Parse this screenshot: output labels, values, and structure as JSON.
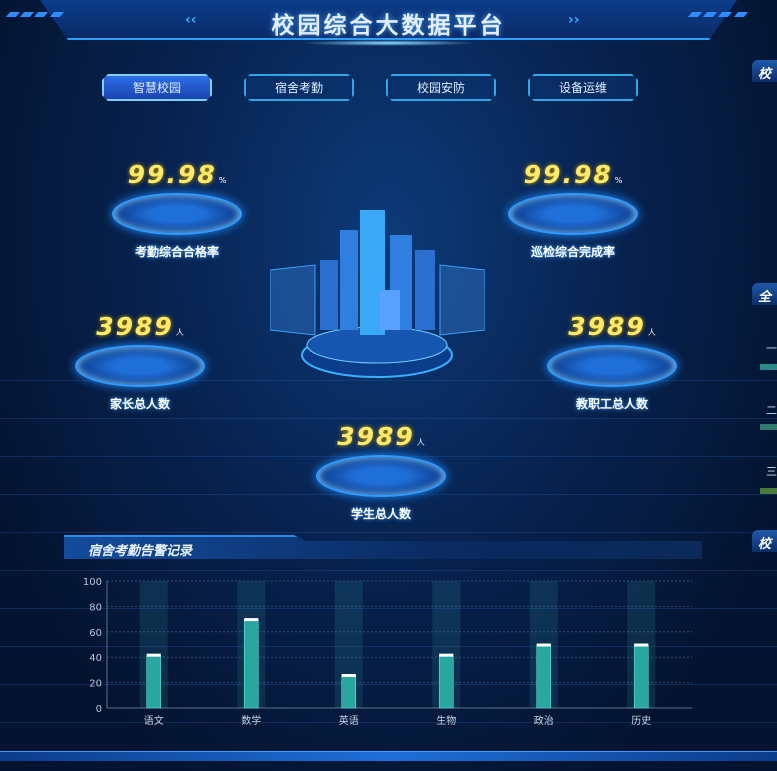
{
  "header": {
    "title": "校园综合大数据平台"
  },
  "tabs": [
    {
      "label": "智慧校园",
      "active": true
    },
    {
      "label": "宿舍考勤",
      "active": false
    },
    {
      "label": "校园安防",
      "active": false
    },
    {
      "label": "设备运维",
      "active": false
    }
  ],
  "stats": {
    "attendance": {
      "value": "99.98",
      "unit": "%",
      "label": "考勤综合合格率"
    },
    "inspection": {
      "value": "99.98",
      "unit": "%",
      "label": "巡检综合完成率"
    },
    "parents": {
      "value": "3989",
      "unit": "人",
      "label": "家长总人数"
    },
    "staff": {
      "value": "3989",
      "unit": "人",
      "label": "教职工总人数"
    },
    "students": {
      "value": "3989",
      "unit": "人",
      "label": "学生总人数"
    }
  },
  "right_panel": {
    "heads": [
      "校",
      "全",
      "校"
    ],
    "rows": [
      "一",
      "二",
      "三"
    ]
  },
  "colors": {
    "accent": "#2fa6e8",
    "number": "#ffe96b",
    "bar": "#3fc9c0"
  },
  "chart_panel": {
    "title": "宿舍考勤告警记录"
  },
  "chart_data": {
    "type": "bar",
    "categories": [
      "语文",
      "数学",
      "英语",
      "生物",
      "政治",
      "历史"
    ],
    "values": [
      42,
      70,
      26,
      42,
      50,
      50
    ],
    "ylim": [
      0,
      100
    ],
    "yticks": [
      0,
      20,
      40,
      60,
      80,
      100
    ],
    "grid": true
  }
}
